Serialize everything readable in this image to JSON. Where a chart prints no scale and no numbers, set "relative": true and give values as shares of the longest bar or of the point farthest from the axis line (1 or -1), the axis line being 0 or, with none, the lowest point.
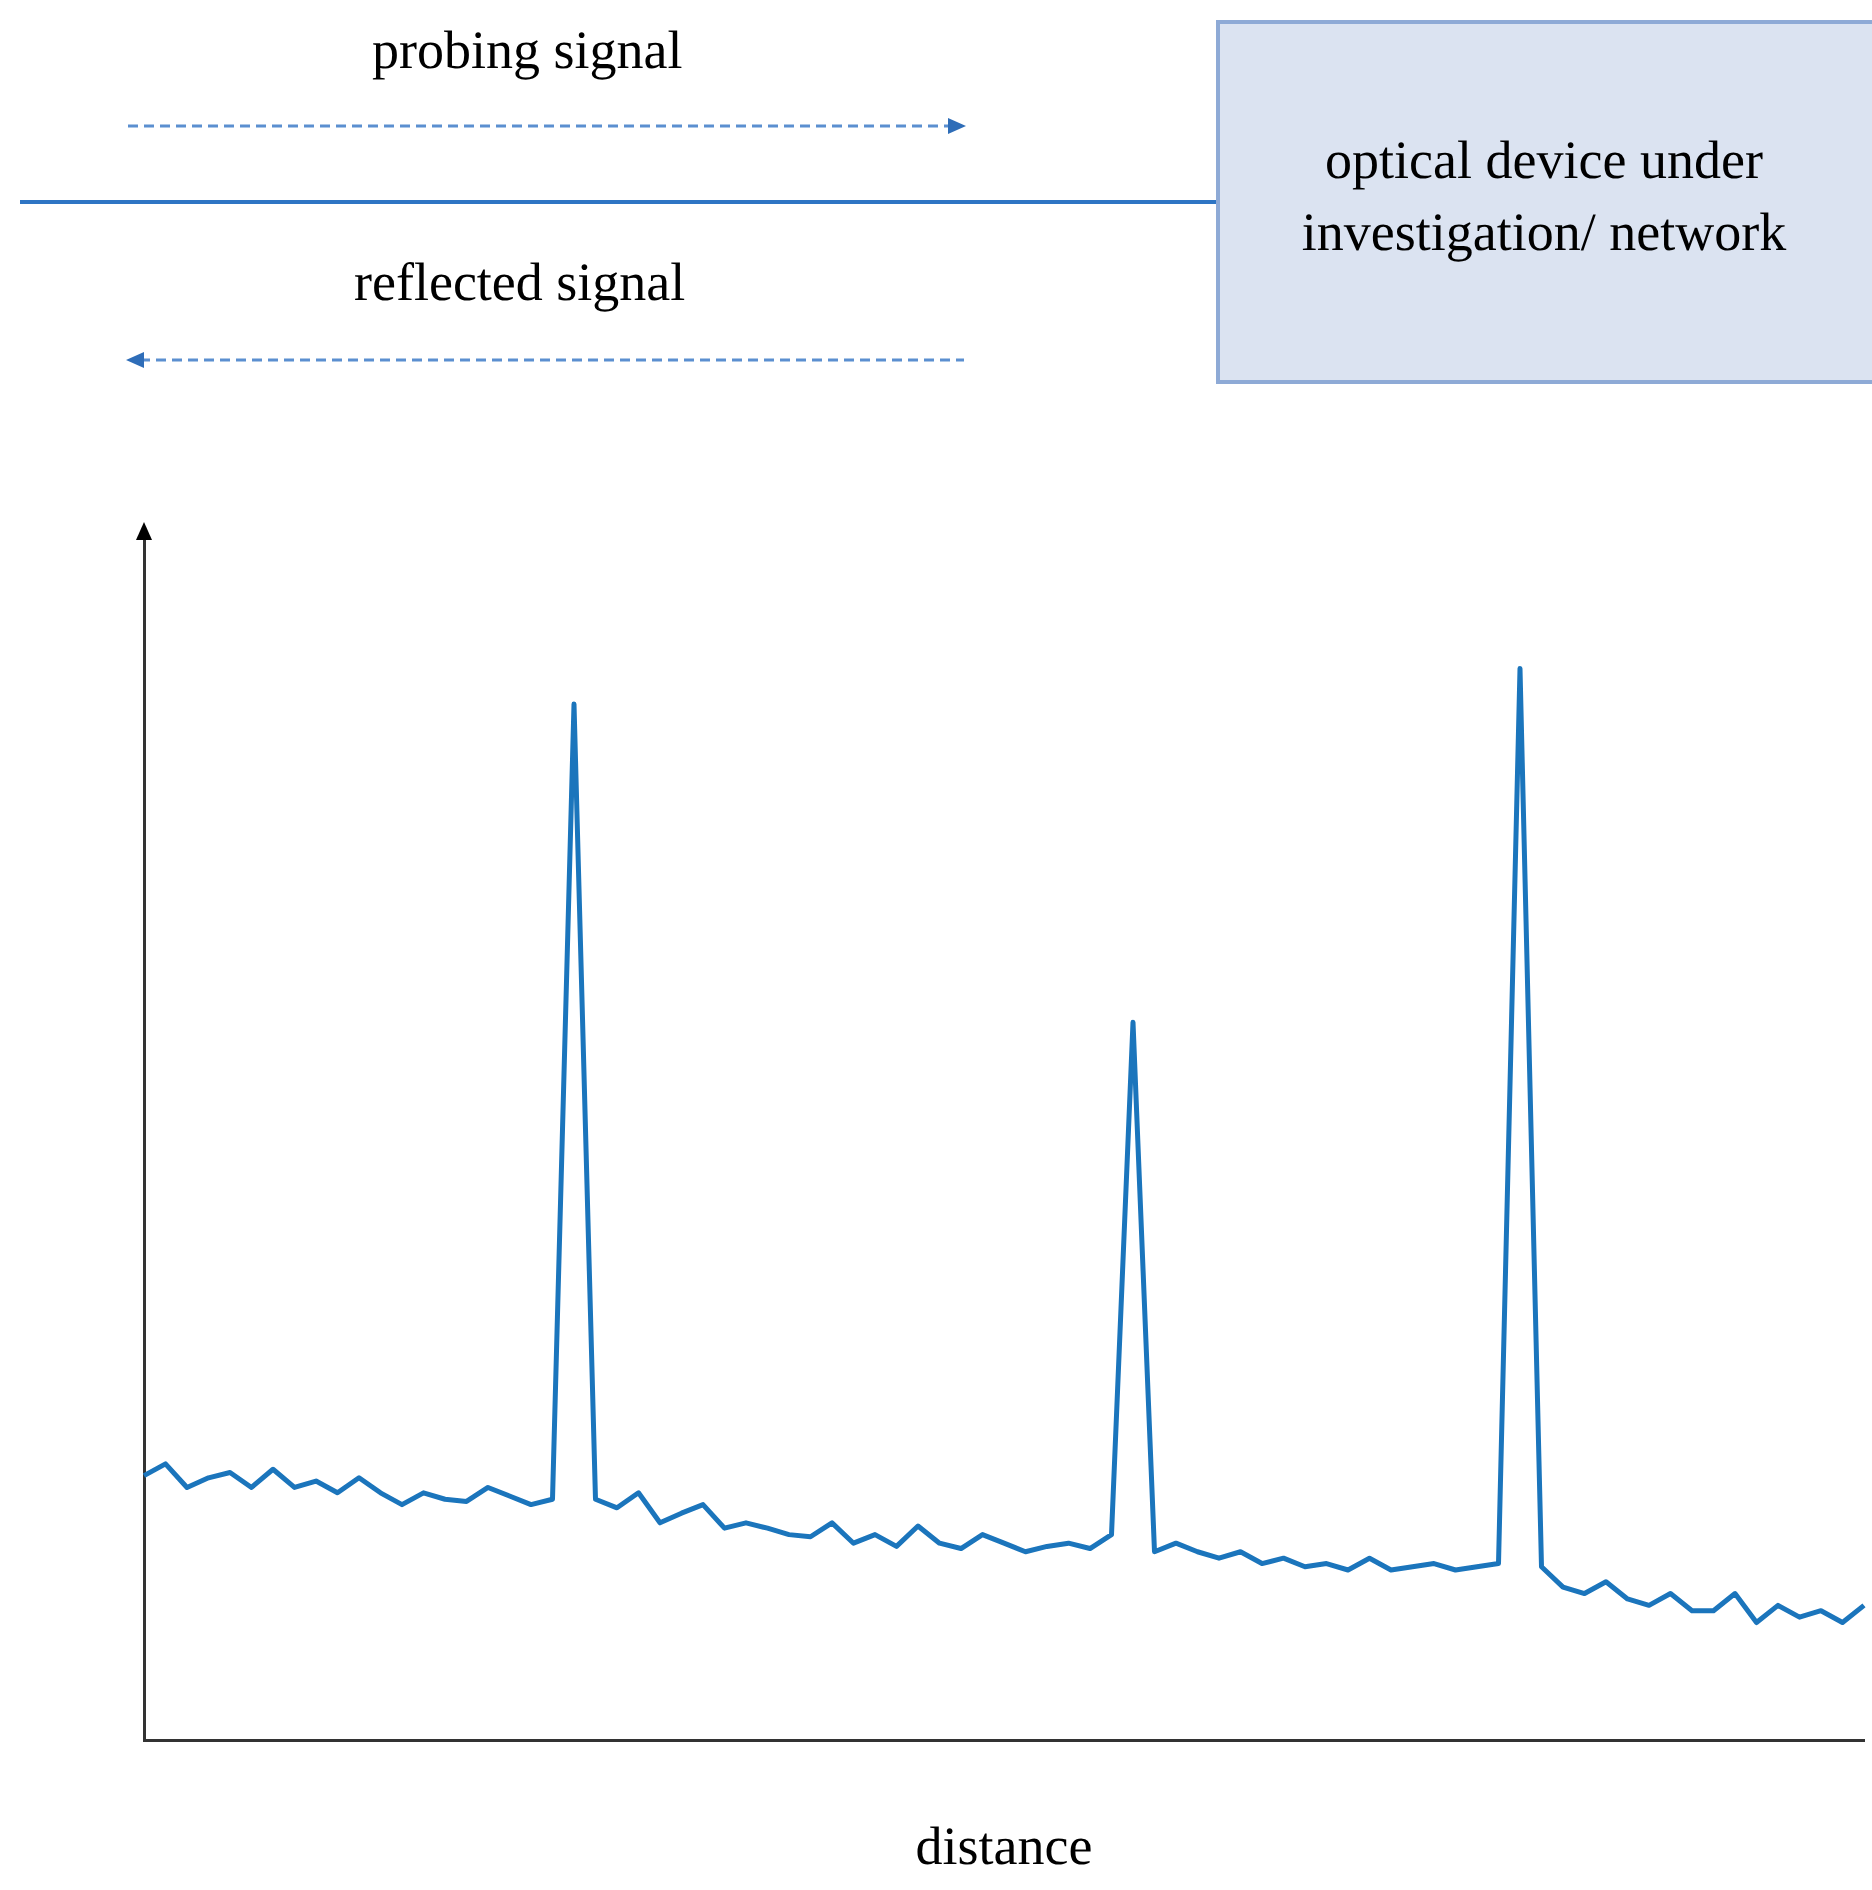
{
  "chart_data": {
    "type": "line",
    "relative": true,
    "xlabel": "distance",
    "annotations": [
      "probing signal",
      "reflected signal",
      "optical device under investigation/ network"
    ],
    "categories": [
      null,
      null,
      null,
      null,
      null,
      null,
      null,
      null,
      null,
      null,
      null,
      null,
      null,
      null,
      null,
      null,
      null,
      null,
      null,
      null,
      null,
      null,
      null,
      null,
      null,
      null,
      null,
      null,
      null,
      null,
      null,
      null,
      null,
      null,
      null,
      null,
      null,
      null,
      null,
      null,
      null,
      null,
      null,
      null,
      null,
      null,
      null,
      null,
      null,
      null,
      null,
      null,
      null,
      null,
      null,
      null,
      null,
      null,
      null,
      null,
      null,
      null,
      null,
      null,
      null,
      null,
      null,
      null,
      null,
      null,
      null,
      null,
      null,
      null,
      null,
      null,
      null,
      null,
      null,
      null,
      null
    ],
    "series": [
      {
        "color": "#1b75bc",
        "values": [
          0.247,
          0.258,
          0.236,
          0.245,
          0.25,
          0.236,
          0.253,
          0.236,
          0.242,
          0.231,
          0.245,
          0.231,
          0.22,
          0.231,
          0.225,
          0.223,
          0.236,
          0.228,
          0.22,
          0.225,
          0.967,
          0.225,
          0.217,
          0.231,
          0.203,
          0.212,
          0.22,
          0.198,
          0.203,
          0.198,
          0.192,
          0.19,
          0.203,
          0.184,
          0.192,
          0.181,
          0.2,
          0.184,
          0.179,
          0.192,
          0.184,
          0.176,
          0.181,
          0.184,
          0.179,
          0.192,
          0.67,
          0.176,
          0.184,
          0.176,
          0.17,
          0.176,
          0.165,
          0.17,
          0.162,
          0.165,
          0.159,
          0.17,
          0.159,
          0.162,
          0.165,
          0.159,
          0.162,
          0.165,
          1,
          0.162,
          0.143,
          0.137,
          0.148,
          0.132,
          0.126,
          0.137,
          0.121,
          0.121,
          0.137,
          0.11,
          0.126,
          0.115,
          0.121,
          0.11,
          0.126
        ]
      }
    ],
    "grid": false,
    "legend": false,
    "marker": "none",
    "line_style": "solid"
  }
}
